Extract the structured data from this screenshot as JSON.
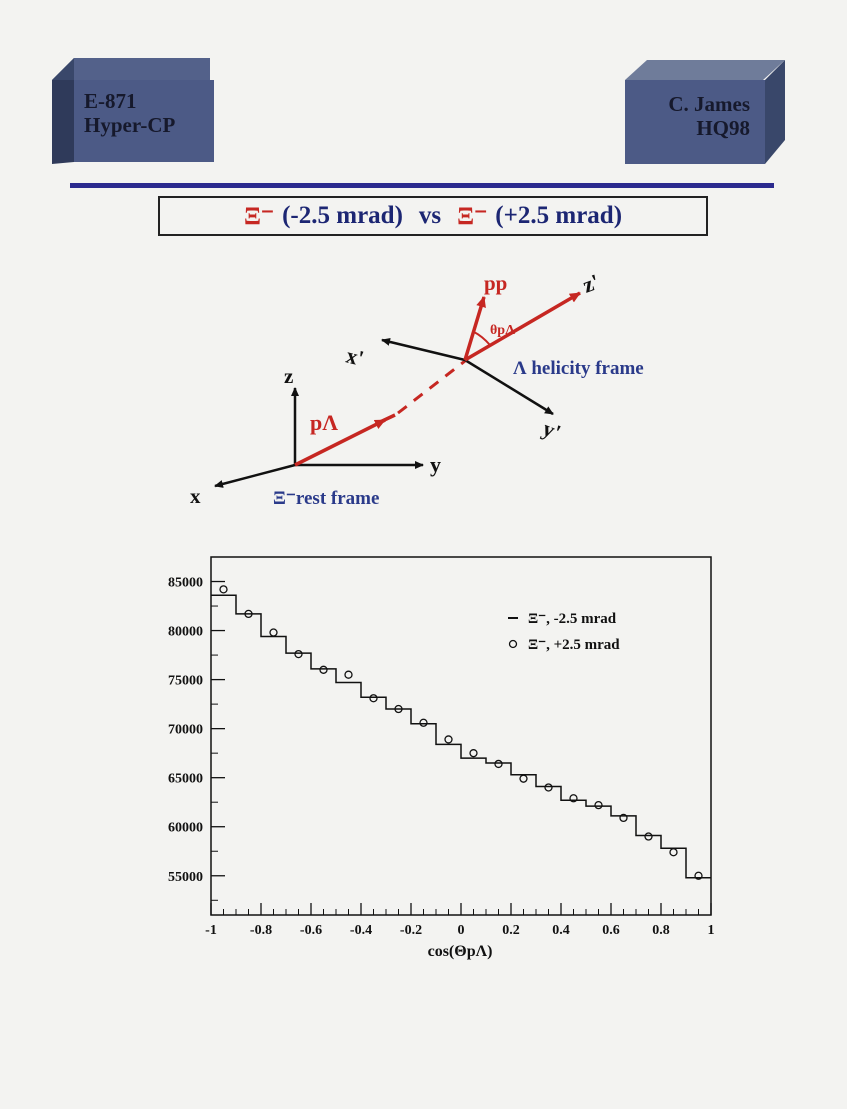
{
  "header": {
    "left_box": {
      "line1": "E-871",
      "line2": "Hyper-CP"
    },
    "right_box": {
      "line1": "C. James",
      "line2": "HQ98"
    }
  },
  "title": {
    "left_particle": "Ξ⁻",
    "left_label": "(-2.5 mrad)",
    "vs": "vs",
    "right_particle": "Ξ⁻",
    "right_label": "(+2.5 mrad)"
  },
  "diagram": {
    "rest_axes": {
      "z": "z",
      "y": "y",
      "x": "x"
    },
    "rest_frame_label": "Ξ⁻rest frame",
    "p_lambda": "pΛ",
    "p_proton": "pp",
    "theta": "θpΛ",
    "helicity_axes": {
      "x": "x'",
      "y": "y'",
      "z": "z'"
    },
    "helicity_frame_label": "Λ helicity frame"
  },
  "chart_data": {
    "type": "line",
    "xlabel": "cos(ΘpΛ)",
    "xlim": [
      -1,
      1
    ],
    "ylim": [
      51000,
      87500
    ],
    "xticks": [
      -1,
      -0.8,
      -0.6,
      -0.4,
      -0.2,
      0,
      0.2,
      0.4,
      0.6,
      0.8,
      1
    ],
    "xtick_labels": [
      "-1",
      "-0.8",
      "-0.6",
      "-0.4",
      "-0.2",
      "0",
      "0.2",
      "0.4",
      "0.6",
      "0.8",
      "1"
    ],
    "yticks": [
      55000,
      60000,
      65000,
      70000,
      75000,
      80000,
      85000
    ],
    "ytick_labels": [
      "55000",
      "60000",
      "65000",
      "70000",
      "75000",
      "80000",
      "85000"
    ],
    "bin_centers": [
      -0.95,
      -0.85,
      -0.75,
      -0.65,
      -0.55,
      -0.45,
      -0.35,
      -0.25,
      -0.15,
      -0.05,
      0.05,
      0.15,
      0.25,
      0.35,
      0.45,
      0.55,
      0.65,
      0.75,
      0.85,
      0.95
    ],
    "legend_position": "top-right",
    "series": [
      {
        "name": "Ξ⁻, -2.5 mrad",
        "style": "histogram",
        "values": [
          83600,
          81700,
          79400,
          77700,
          76100,
          74700,
          73200,
          72000,
          70500,
          68400,
          67000,
          66500,
          65300,
          64100,
          62700,
          62100,
          61100,
          59100,
          57800,
          54800
        ]
      },
      {
        "name": "Ξ⁻, +2.5 mrad",
        "style": "circles",
        "values": [
          84200,
          81700,
          79800,
          77600,
          76000,
          75500,
          73100,
          72000,
          70600,
          68900,
          67500,
          66400,
          64900,
          64000,
          62900,
          62200,
          60900,
          59000,
          57400,
          55000
        ]
      }
    ]
  }
}
